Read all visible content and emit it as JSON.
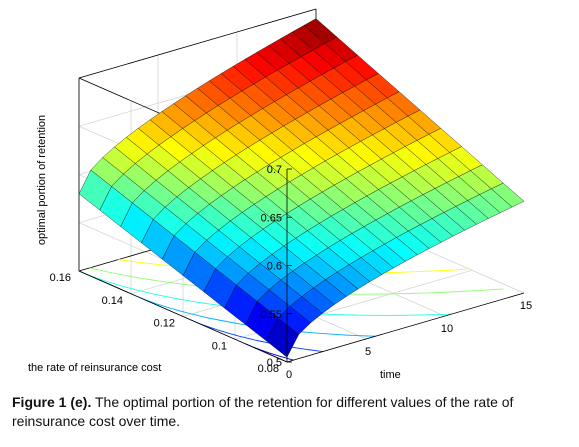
{
  "chart_data": {
    "type": "surface3d",
    "title": "",
    "zlabel": "optimal portion of retention",
    "xlabel": "time",
    "ylabel": "the rate of reinsurance cost",
    "x_ticks": [
      "0",
      "5",
      "10",
      "15"
    ],
    "y_ticks": [
      "0.08",
      "0.1",
      "0.12",
      "0.14",
      "0.16"
    ],
    "z_ticks": [
      "0.5",
      "0.55",
      "0.6",
      "0.65",
      "0.7"
    ],
    "xlim": [
      0,
      15
    ],
    "ylim": [
      0.08,
      0.16
    ],
    "zlim": [
      0.5,
      0.7
    ],
    "grid": true,
    "colormap": "jet",
    "contours_on_base": true,
    "time": [
      0,
      1,
      2,
      3,
      4,
      5,
      6,
      7,
      8,
      9,
      10,
      11,
      12,
      13,
      14,
      15
    ],
    "reinsurance_cost": [
      0.08,
      0.09,
      0.1,
      0.11,
      0.12,
      0.13,
      0.14,
      0.15,
      0.16
    ],
    "surface_note": "retention rises with time and with reinsurance cost; min about 0.505 at (t=0, c=0.08), max about 0.69 at (t=15, c=0.16)",
    "z_min": 0.505,
    "z_max": 0.69
  },
  "caption": {
    "lead": "Figure 1 (e).",
    "text": "The optimal portion of the retention for different values of the rate of reinsurance cost over time."
  }
}
